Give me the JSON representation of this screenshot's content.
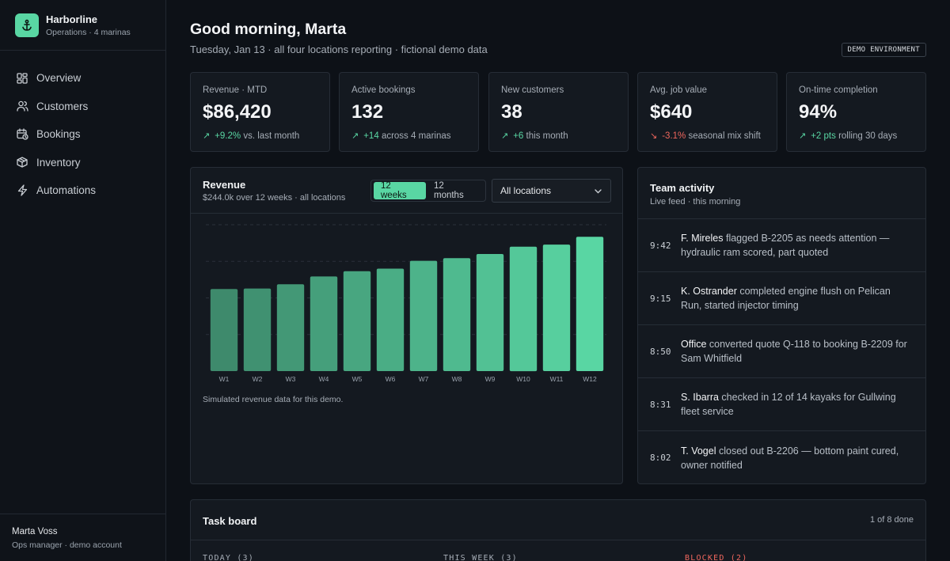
{
  "brand": {
    "name": "Harborline",
    "subtitle": "Operations · 4 marinas",
    "icon": "anchor-icon"
  },
  "nav": [
    {
      "label": "Overview",
      "icon": "grid-icon"
    },
    {
      "label": "Customers",
      "icon": "users-icon"
    },
    {
      "label": "Bookings",
      "icon": "calendar-clock-icon"
    },
    {
      "label": "Inventory",
      "icon": "box-icon"
    },
    {
      "label": "Automations",
      "icon": "lightning-icon"
    }
  ],
  "user": {
    "name": "Marta Voss",
    "role": "Ops manager · demo account"
  },
  "header": {
    "greeting": "Good morning, Marta",
    "subline": "Tuesday, Jan 13 · all four locations reporting · fictional demo data",
    "badge": "DEMO ENVIRONMENT"
  },
  "kpis": [
    {
      "label": "Revenue · MTD",
      "value": "$86,420",
      "delta": "+9.2%",
      "note": "vs. last month",
      "trend": "up"
    },
    {
      "label": "Active bookings",
      "value": "132",
      "delta": "+14",
      "note": "across 4 marinas",
      "trend": "up"
    },
    {
      "label": "New customers",
      "value": "38",
      "delta": "+6",
      "note": "this month",
      "trend": "up"
    },
    {
      "label": "Avg. job value",
      "value": "$640",
      "delta": "-3.1%",
      "note": "seasonal mix shift",
      "trend": "down"
    },
    {
      "label": "On-time completion",
      "value": "94%",
      "delta": "+2 pts",
      "note": "rolling 30 days",
      "trend": "up"
    }
  ],
  "colors": {
    "accent": "#59d6a3",
    "negative": "#f0675e",
    "background": "#0d1117",
    "panel": "#141920"
  },
  "revenue": {
    "title": "Revenue",
    "subtitle": "$244.0k over 12 weeks · all locations",
    "range_options": [
      "12 weeks",
      "12 months"
    ],
    "range_selected": "12 weeks",
    "location_selected": "All locations",
    "note": "Simulated revenue data for this demo."
  },
  "chart_data": {
    "type": "bar",
    "title": "Revenue",
    "categories": [
      "W1",
      "W2",
      "W3",
      "W4",
      "W5",
      "W6",
      "W7",
      "W8",
      "W9",
      "W10",
      "W11",
      "W12"
    ],
    "values": [
      15.7,
      15.8,
      16.6,
      18.1,
      19.1,
      19.6,
      21.1,
      21.6,
      22.4,
      23.8,
      24.2,
      25.7
    ],
    "ylim": [
      0,
      28
    ],
    "grid": true,
    "ytick_labels_shown": false
  },
  "activity": {
    "title": "Team activity",
    "subtitle": "Live feed · this morning",
    "items": [
      {
        "time": "9:42",
        "who": "F. Mireles",
        "text": "flagged B-2205 as needs attention — hydraulic ram scored, part quoted"
      },
      {
        "time": "9:15",
        "who": "K. Ostrander",
        "text": "completed engine flush on Pelican Run, started injector timing"
      },
      {
        "time": "8:50",
        "who": "Office",
        "text": "converted quote Q-118 to booking B-2209 for Sam Whitfield"
      },
      {
        "time": "8:31",
        "who": "S. Ibarra",
        "text": "checked in 12 of 14 kayaks for Gullwing fleet service"
      },
      {
        "time": "8:02",
        "who": "T. Vogel",
        "text": "closed out B-2206 — bottom paint cured, owner notified"
      }
    ]
  },
  "tasks": {
    "title": "Task board",
    "progress": "1 of 8 done",
    "columns": [
      "TODAY (3)",
      "THIS WEEK (3)",
      "BLOCKED (2)"
    ]
  }
}
